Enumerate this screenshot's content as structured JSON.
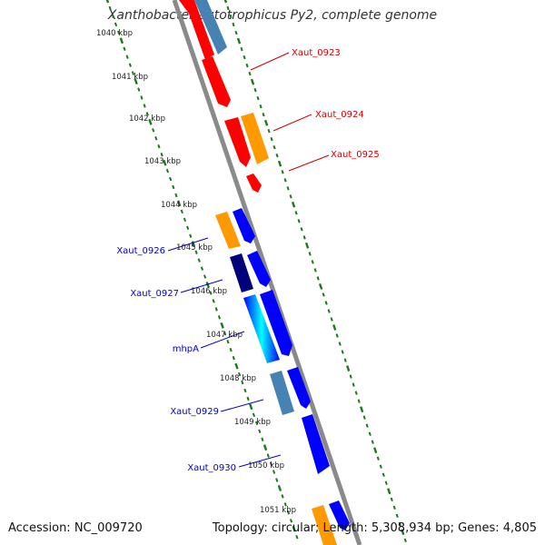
{
  "title": "Xanthobacter autotrophicus Py2, complete genome",
  "footer": {
    "accession": "Accession: NC_009720",
    "summary": "Topology: circular; Length: 5,308,934 bp; Genes: 4,805"
  },
  "colors": {
    "backbone": "#8a8a8a",
    "ticks": "#1a7a1a",
    "red": "#ff0000",
    "orange": "#ff9900",
    "steelblue": "#4682b4",
    "blue": "#0000ff",
    "navy": "#00007a",
    "cyan": "#00ffff",
    "label_red": "#cc0000",
    "label_blue": "#0000cc"
  },
  "kbp_labels": [
    "1040 kbp",
    "1041 kbp",
    "1042 kbp",
    "1043 kbp",
    "1044 kbp",
    "1045 kbp",
    "1046 kbp",
    "1047 kbp",
    "1048 kbp",
    "1049 kbp",
    "1050 kbp",
    "1051 kbp"
  ],
  "gene_labels_right": [
    "Xaut_0923",
    "Xaut_0924",
    "Xaut_0925"
  ],
  "gene_labels_left": [
    "Xaut_0926",
    "Xaut_0927",
    "mhpA",
    "Xaut_0929",
    "Xaut_0930"
  ]
}
